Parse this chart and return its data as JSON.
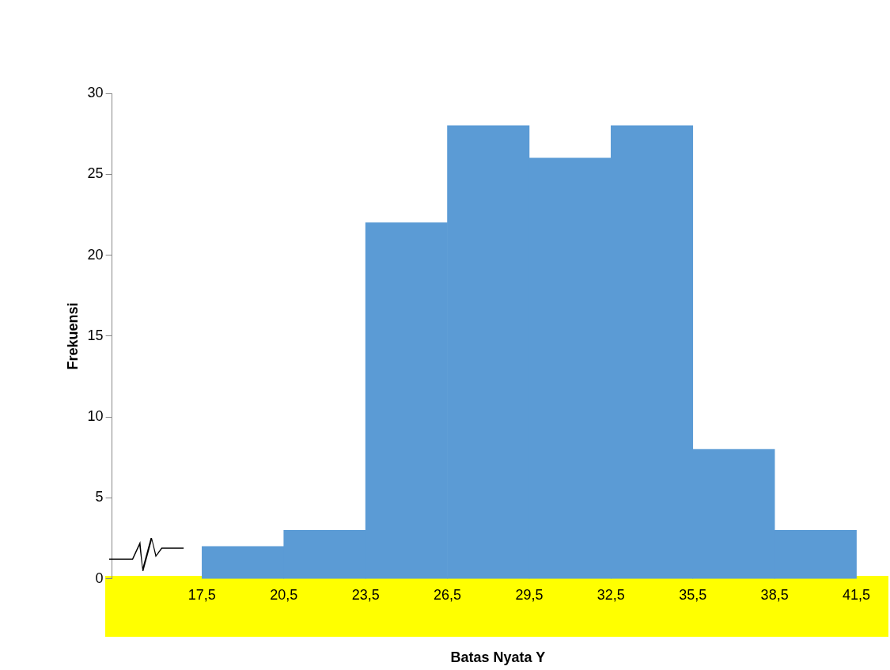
{
  "chart_data": {
    "type": "histogram",
    "xlabel": "Batas Nyata Y",
    "ylabel": "Frekuensi",
    "bins": [
      17.5,
      20.5,
      23.5,
      26.5,
      29.5,
      32.5,
      35.5,
      38.5,
      41.5
    ],
    "values": [
      2,
      3,
      22,
      28,
      26,
      28,
      8,
      3
    ],
    "color": "#5b9bd5",
    "xlim": [
      14.2,
      42.5
    ],
    "xticks": [
      {
        "value": 17.5,
        "label": "17,5"
      },
      {
        "value": 20.5,
        "label": "20,5"
      },
      {
        "value": 23.5,
        "label": "23,5"
      },
      {
        "value": 26.5,
        "label": "26,5"
      },
      {
        "value": 29.5,
        "label": "29,5"
      },
      {
        "value": 32.5,
        "label": "32,5"
      },
      {
        "value": 35.5,
        "label": "35,5"
      },
      {
        "value": 38.5,
        "label": "38,5"
      },
      {
        "value": 41.5,
        "label": "41,5"
      }
    ],
    "ylim": [
      0,
      30
    ],
    "yticks": [
      0,
      5,
      10,
      15,
      20,
      25,
      30
    ],
    "grid": false,
    "legend": false
  }
}
